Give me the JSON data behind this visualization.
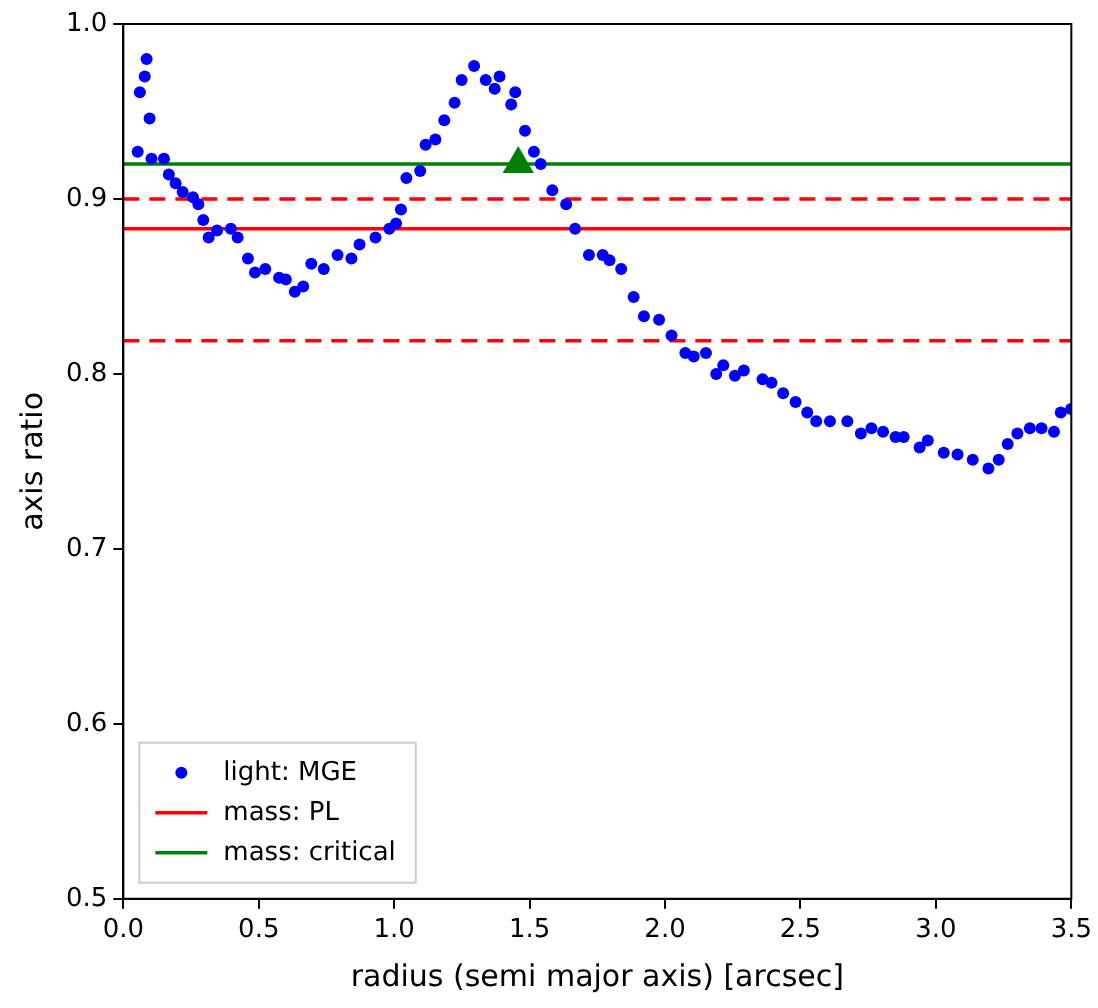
{
  "chart_data": {
    "type": "scatter",
    "xlabel": "radius (semi major axis) [arcsec]",
    "ylabel": "axis ratio",
    "xlim": [
      0,
      3.5
    ],
    "xticks": [
      {
        "value": 0,
        "label": "0.0"
      },
      0.5,
      {
        "value": 1,
        "label": "1.0"
      },
      1.5,
      {
        "value": 2,
        "label": "2.0"
      },
      2.5,
      {
        "value": 3,
        "label": "3.0"
      },
      3.5
    ],
    "ylim": [
      0.5,
      1.0
    ],
    "yticks": [
      0.5,
      0.6,
      0.7,
      0.8,
      0.9,
      {
        "value": 1,
        "label": "1.0"
      }
    ],
    "grid": false,
    "legend": "bottom left",
    "series": [
      {
        "name": "light: MGE",
        "marker": "circle",
        "color": "#0000ff",
        "x": [
          0.053,
          0.061,
          0.079,
          0.086,
          0.097,
          0.104,
          0.15,
          0.168,
          0.193,
          0.219,
          0.257,
          0.277,
          0.295,
          0.315,
          0.346,
          0.397,
          0.422,
          0.46,
          0.486,
          0.524,
          0.575,
          0.6,
          0.633,
          0.664,
          0.694,
          0.74,
          0.791,
          0.842,
          0.872,
          0.931,
          0.982,
          1.007,
          1.025,
          1.045,
          1.096,
          1.116,
          1.152,
          1.185,
          1.223,
          1.249,
          1.295,
          1.338,
          1.371,
          1.389,
          1.432,
          1.447,
          1.483,
          1.516,
          1.541,
          1.584,
          1.635,
          1.668,
          1.719,
          1.77,
          1.795,
          1.838,
          1.884,
          1.922,
          1.978,
          2.024,
          2.075,
          2.106,
          2.151,
          2.189,
          2.215,
          2.258,
          2.291,
          2.36,
          2.393,
          2.436,
          2.482,
          2.525,
          2.558,
          2.609,
          2.673,
          2.723,
          2.762,
          2.805,
          2.851,
          2.881,
          2.94,
          2.97,
          3.029,
          3.08,
          3.136,
          3.194,
          3.232,
          3.265,
          3.301,
          3.347,
          3.39,
          3.436,
          3.461,
          3.499
        ],
        "values": [
          0.927,
          0.961,
          0.97,
          0.98,
          0.946,
          0.923,
          0.923,
          0.914,
          0.909,
          0.904,
          0.901,
          0.897,
          0.888,
          0.878,
          0.882,
          0.883,
          0.878,
          0.866,
          0.858,
          0.86,
          0.855,
          0.854,
          0.847,
          0.85,
          0.863,
          0.86,
          0.868,
          0.866,
          0.874,
          0.878,
          0.883,
          0.886,
          0.894,
          0.912,
          0.916,
          0.931,
          0.934,
          0.945,
          0.955,
          0.968,
          0.976,
          0.968,
          0.963,
          0.97,
          0.954,
          0.961,
          0.939,
          0.927,
          0.92,
          0.905,
          0.897,
          0.883,
          0.868,
          0.868,
          0.865,
          0.86,
          0.844,
          0.833,
          0.831,
          0.822,
          0.812,
          0.81,
          0.812,
          0.8,
          0.805,
          0.799,
          0.802,
          0.797,
          0.795,
          0.789,
          0.784,
          0.778,
          0.773,
          0.773,
          0.773,
          0.766,
          0.769,
          0.767,
          0.764,
          0.764,
          0.758,
          0.762,
          0.755,
          0.754,
          0.751,
          0.746,
          0.751,
          0.76,
          0.766,
          0.769,
          0.769,
          0.767,
          0.778,
          0.78
        ]
      },
      {
        "name": "mass: PL",
        "type": "line",
        "marker": "none",
        "line_style": "solid",
        "color": "#ff0000",
        "x": [
          0,
          3.5
        ],
        "values": [
          0.883,
          0.883
        ]
      },
      {
        "name": "mass: critical",
        "type": "line",
        "marker": "none",
        "line_style": "solid",
        "color": "#008000",
        "x": [
          0,
          3.5
        ],
        "values": [
          0.92,
          0.92
        ]
      },
      {
        "type": "line",
        "marker": "none",
        "line_style": "dashed",
        "color": "#ff0000",
        "x": [
          0,
          3.5
        ],
        "values": [
          0.9,
          0.9
        ]
      },
      {
        "type": "line",
        "marker": "none",
        "line_style": "dashed",
        "color": "#ff0000",
        "x": [
          0,
          3.5
        ],
        "values": [
          0.819,
          0.819
        ]
      },
      {
        "marker": "triangle",
        "color": "#008000",
        "x": [
          1.458
        ],
        "values": [
          0.92
        ]
      }
    ]
  }
}
